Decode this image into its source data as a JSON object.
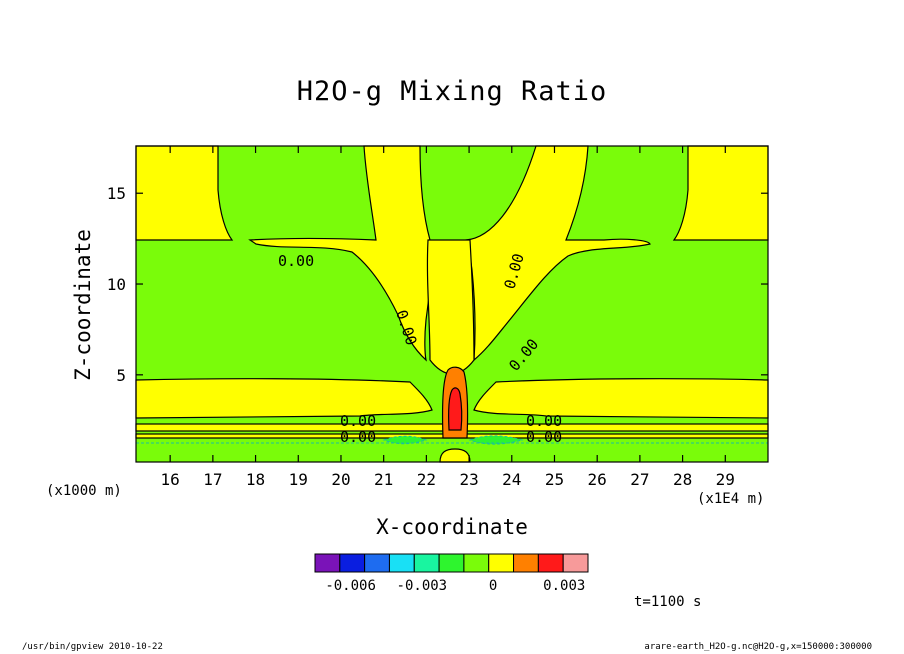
{
  "chart_data": {
    "type": "contour",
    "title": "H2O-g Mixing Ratio",
    "xlabel": "X-coordinate",
    "ylabel": "Z-coordinate",
    "x_unit_note": "(x1000 m)",
    "x_scale_note": "(x1E4 m)",
    "xlim": [
      15.2,
      30.0
    ],
    "ylim": [
      0.2,
      17.6
    ],
    "x_ticks": [
      16,
      17,
      18,
      19,
      20,
      21,
      22,
      23,
      24,
      25,
      26,
      27,
      28,
      29
    ],
    "y_ticks": [
      5,
      10,
      15
    ],
    "contour_labels": [
      "0.00",
      "0.00",
      "0.00",
      "0.00",
      "0.00",
      "0.00",
      "0.00",
      "0.00"
    ],
    "colorbar": {
      "colors": [
        "#7a13b8",
        "#0a1ee0",
        "#1e6cf0",
        "#19e0f5",
        "#19f5a0",
        "#2ef52e",
        "#7afc0a",
        "#ffff00",
        "#ff8000",
        "#ff1a1a",
        "#f79a9a"
      ],
      "tick_labels": [
        "-0.006",
        "-0.003",
        "0",
        "0.003"
      ],
      "tick_values": [
        -0.006,
        -0.003,
        0,
        0.003
      ],
      "range": [
        -0.0075,
        0.004
      ]
    },
    "time_label": "t=1100 s"
  },
  "footer": {
    "left": "/usr/bin/gpview  2010-10-22",
    "right": "arare-earth_H2O-g.nc@H2O-g,x=150000:300000"
  }
}
